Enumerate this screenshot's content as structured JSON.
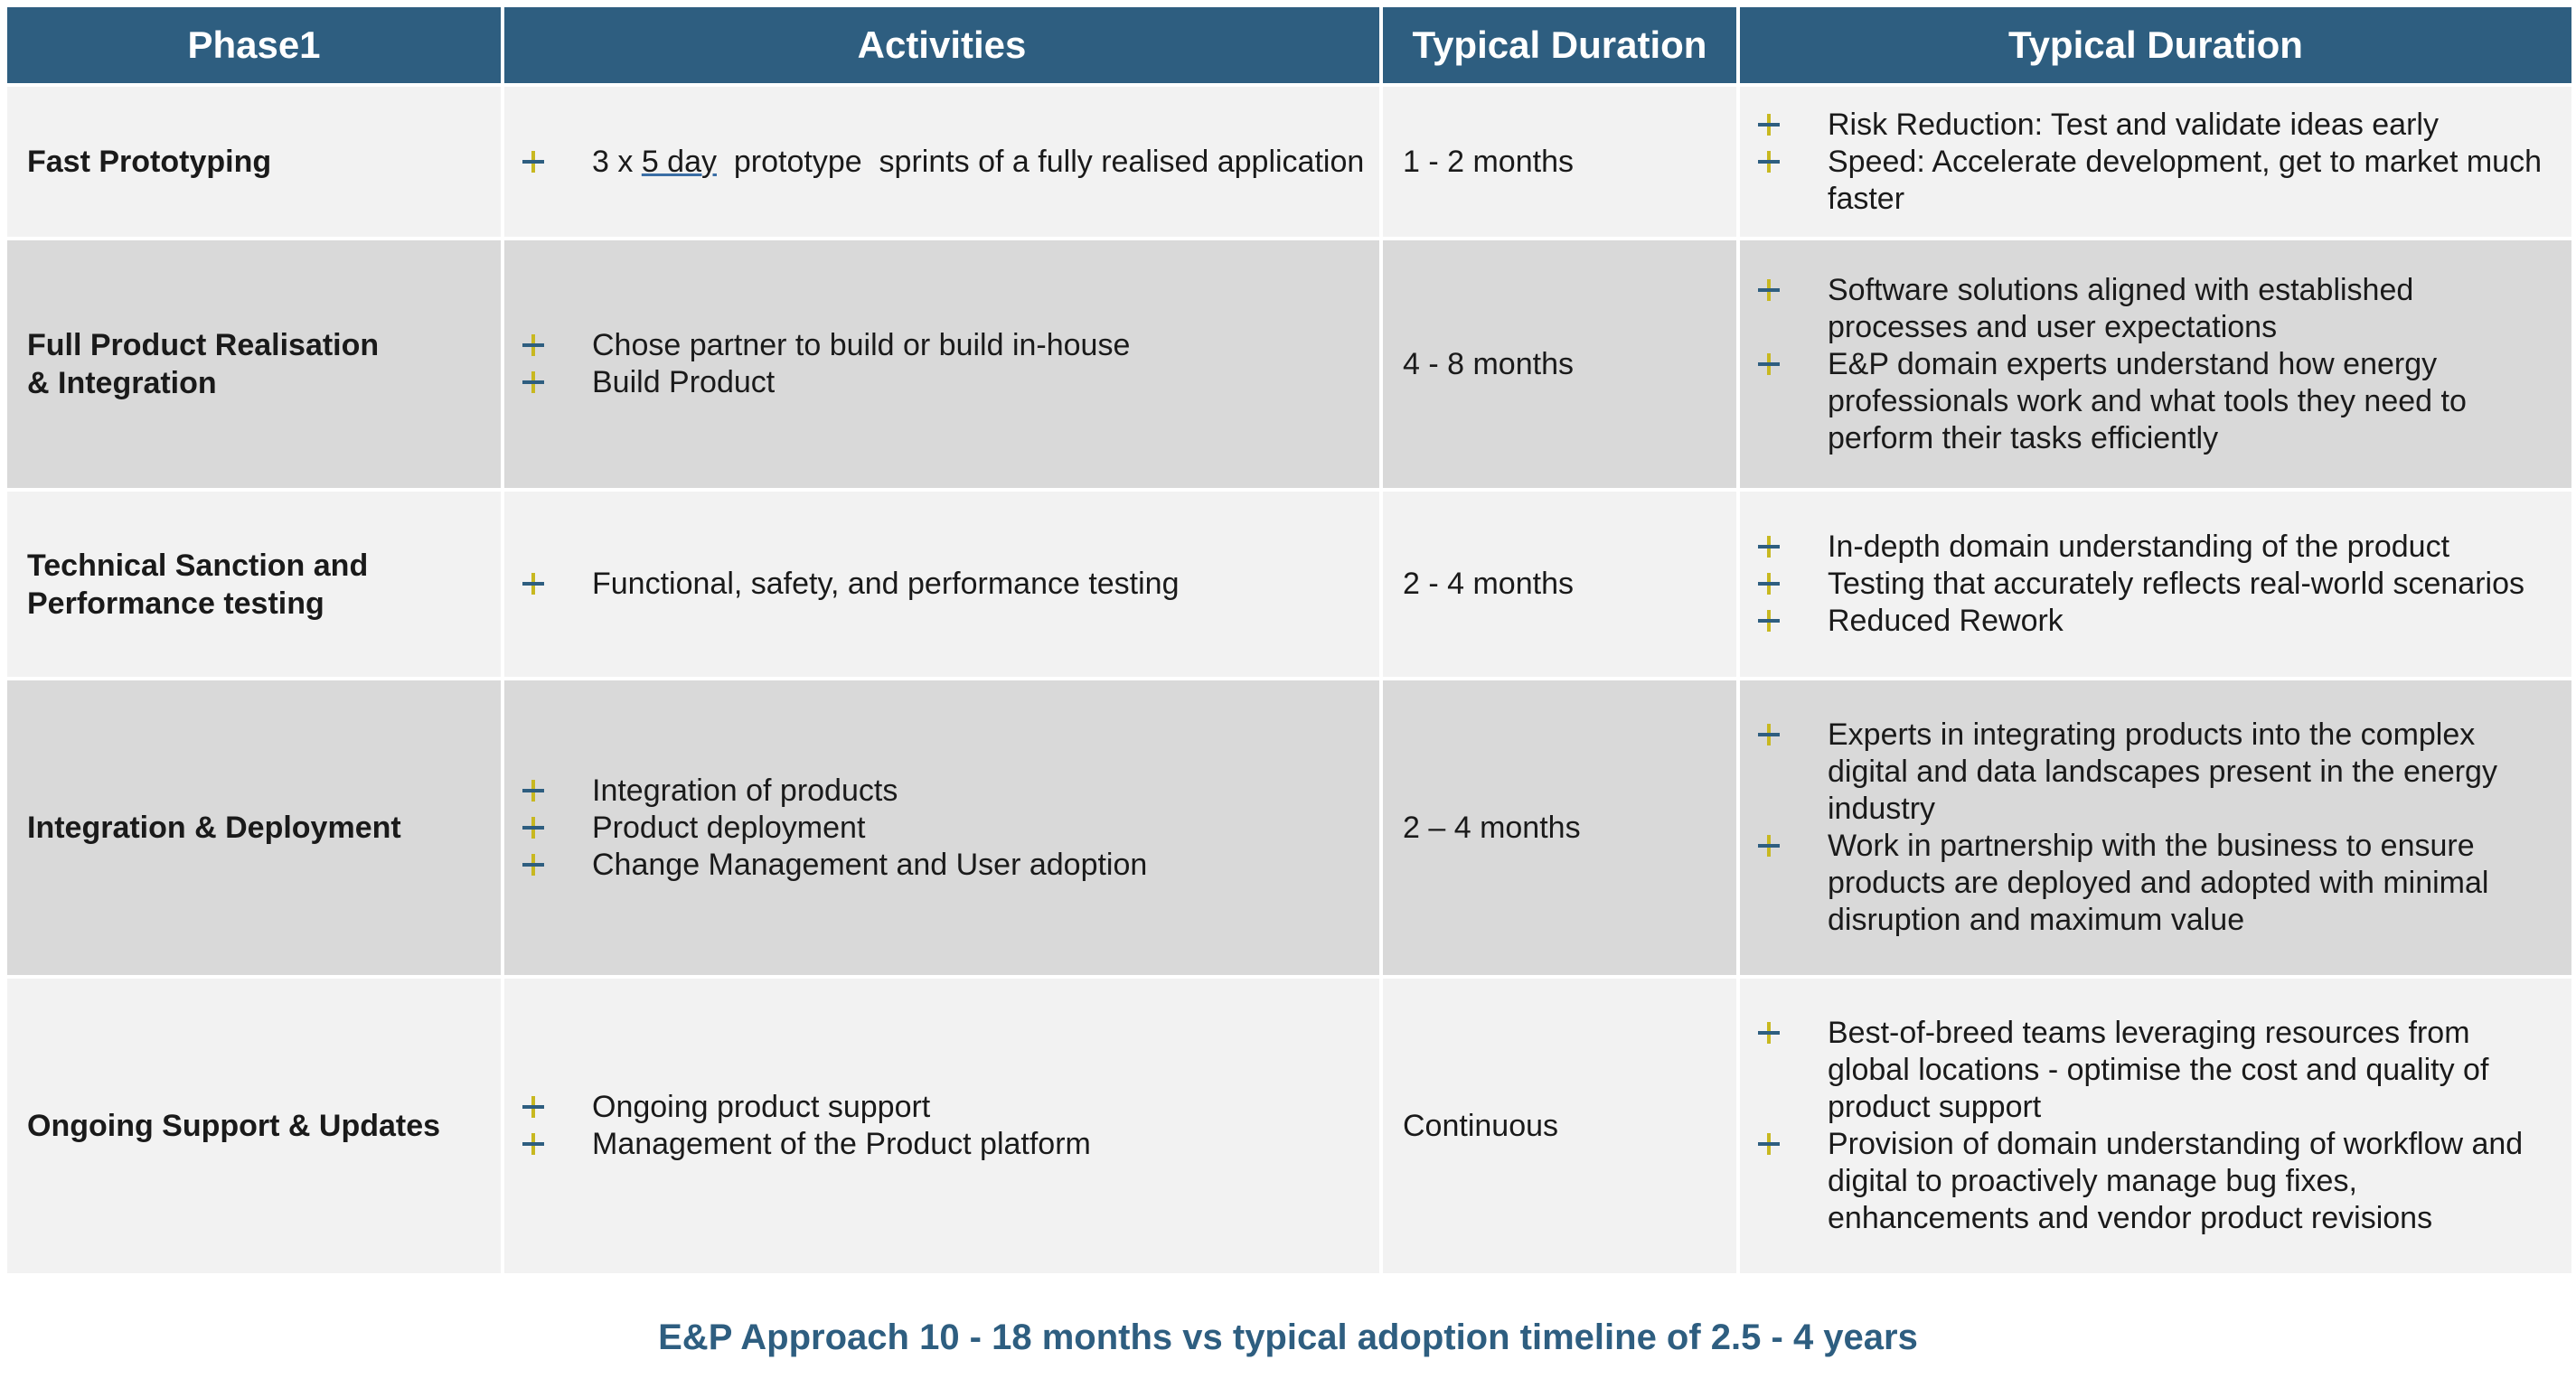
{
  "headers": [
    "Phase1",
    "Activities",
    "Typical Duration",
    "Typical Duration"
  ],
  "rows": [
    {
      "phase": [
        "Fast Prototyping"
      ],
      "activities": [
        {
          "pre": "3 x ",
          "underlined": "5 day",
          "post": "  prototype  sprints of a fully realised application"
        }
      ],
      "duration": "1 - 2 months",
      "benefits": [
        "Risk Reduction: Test and validate ideas early",
        "Speed: Accelerate development, get to market much faster"
      ]
    },
    {
      "phase": [
        "Full Product Realisation",
        "& Integration"
      ],
      "activities": [
        {
          "text": "Chose partner to build or build in-house"
        },
        {
          "text": "Build Product"
        }
      ],
      "duration": "4 - 8 months",
      "benefits": [
        "Software solutions aligned with established processes and user expectations",
        "E&P domain experts understand how energy professionals work and what tools they need to perform their tasks efficiently"
      ]
    },
    {
      "phase": [
        "Technical Sanction and",
        "Performance testing"
      ],
      "activities": [
        {
          "text": "Functional, safety, and performance testing"
        }
      ],
      "duration": "2 - 4 months",
      "benefits": [
        "In-depth domain understanding of the product",
        "Testing that accurately reflects real-world scenarios",
        "Reduced Rework"
      ]
    },
    {
      "phase": [
        "Integration & Deployment"
      ],
      "activities": [
        {
          "text": "Integration of products"
        },
        {
          "text": "Product deployment"
        },
        {
          "text": "Change Management and User adoption"
        }
      ],
      "duration": "2 – 4 months",
      "benefits": [
        "Experts in integrating products into the complex digital and data landscapes present in the energy industry",
        "Work in partnership with the business to ensure products are deployed and adopted with minimal disruption and maximum value"
      ]
    },
    {
      "phase": [
        "Ongoing Support & Updates"
      ],
      "activities": [
        {
          "text": "Ongoing product support"
        },
        {
          "text": "Management of the Product platform"
        }
      ],
      "duration": "Continuous",
      "benefits": [
        "Best-of-breed teams leveraging resources from global locations - optimise the cost and quality of product support",
        "Provision of domain understanding of workflow and digital to proactively manage bug fixes, enhancements and vendor product revisions"
      ]
    }
  ],
  "footer": "E&P Approach 10 - 18 months vs typical adoption timeline of 2.5 - 4 years",
  "colors": {
    "header_bg": "#2e5e80",
    "row_light": "#f2f2f2",
    "row_dark": "#d9d9d9",
    "plus_vertical": "#c8b820",
    "plus_horizontal": "#2e5e80",
    "footer_text": "#2e5e80"
  },
  "icons": {
    "bullet": "plus-icon"
  }
}
